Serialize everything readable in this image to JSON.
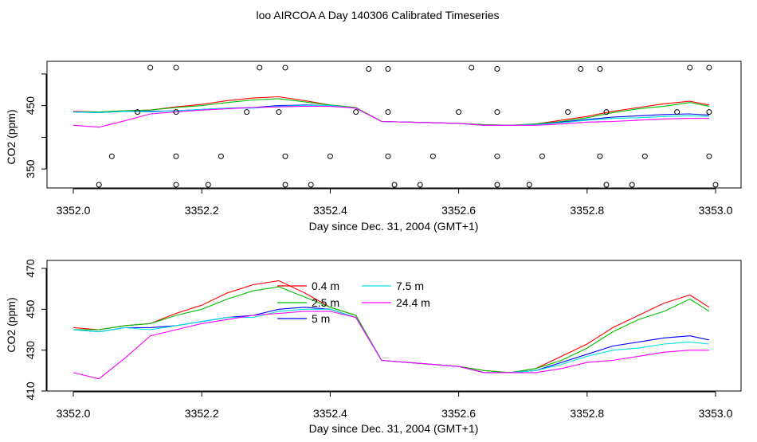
{
  "title": "loo AIRCOA A  Day 140306  Calibrated Timeseries",
  "chart_data": [
    {
      "type": "line",
      "panel": "top",
      "xlabel": "Day since Dec. 31, 2004 (GMT+1)",
      "ylabel": "CO2 (ppm)",
      "xlim": [
        3352.0,
        3353.0
      ],
      "ylim": [
        320,
        520
      ],
      "x_ticks": [
        "3352.0",
        "3352.2",
        "3352.4",
        "3352.6",
        "3352.8",
        "3353.0"
      ],
      "y_ticks": [
        {
          "v": 350,
          "label": "350"
        },
        {
          "v": 400,
          "label": ""
        },
        {
          "v": 450,
          "label": "450"
        },
        {
          "v": 500,
          "label": ""
        }
      ],
      "grid": false,
      "points": {
        "style": "open circles",
        "x": [
          3352.04,
          3352.06,
          3352.1,
          3352.12,
          3352.16,
          3352.16,
          3352.16,
          3352.16,
          3352.21,
          3352.23,
          3352.27,
          3352.29,
          3352.32,
          3352.33,
          3352.33,
          3352.33,
          3352.37,
          3352.4,
          3352.44,
          3352.46,
          3352.49,
          3352.49,
          3352.49,
          3352.5,
          3352.54,
          3352.56,
          3352.6,
          3352.62,
          3352.66,
          3352.66,
          3352.66,
          3352.66,
          3352.71,
          3352.73,
          3352.77,
          3352.79,
          3352.82,
          3352.82,
          3352.83,
          3352.83,
          3352.87,
          3352.89,
          3352.94,
          3352.96,
          3352.99,
          3352.99,
          3352.99,
          3353.0
        ],
        "y": [
          325,
          370,
          440,
          510,
          325,
          370,
          440,
          510,
          325,
          370,
          440,
          510,
          440,
          510,
          370,
          325,
          325,
          370,
          440,
          508,
          440,
          508,
          370,
          325,
          325,
          370,
          440,
          510,
          440,
          508,
          370,
          325,
          325,
          370,
          440,
          508,
          508,
          370,
          440,
          325,
          325,
          370,
          440,
          510,
          510,
          440,
          370,
          325
        ]
      },
      "x": [
        3352.0,
        3352.04,
        3352.08,
        3352.12,
        3352.16,
        3352.2,
        3352.24,
        3352.28,
        3352.32,
        3352.36,
        3352.4,
        3352.44,
        3352.48,
        3352.52,
        3352.56,
        3352.6,
        3352.64,
        3352.68,
        3352.72,
        3352.76,
        3352.8,
        3352.84,
        3352.88,
        3352.92,
        3352.96,
        3352.99
      ],
      "series": [
        {
          "name": "0.4 m",
          "color": "#ff0000",
          "values": [
            441,
            440,
            442,
            443,
            448,
            452,
            458,
            462,
            464,
            458,
            451,
            447,
            425,
            424,
            423,
            422,
            420,
            419,
            421,
            427,
            433,
            441,
            447,
            453,
            457,
            451
          ]
        },
        {
          "name": "2.5 m",
          "color": "#00c000",
          "values": [
            440,
            440,
            442,
            443,
            447,
            450,
            455,
            459,
            461,
            456,
            451,
            447,
            425,
            424,
            423,
            422,
            420,
            419,
            421,
            425,
            431,
            439,
            445,
            449,
            455,
            449
          ]
        },
        {
          "name": "5 m",
          "color": "#0000ff",
          "values": [
            440,
            439,
            441,
            441,
            442,
            444,
            446,
            447,
            450,
            451,
            450,
            446,
            425,
            424,
            423,
            422,
            419,
            419,
            420,
            424,
            428,
            432,
            434,
            436,
            437,
            435
          ]
        },
        {
          "name": "7.5 m",
          "color": "#00e0e0",
          "values": [
            440,
            439,
            441,
            440,
            442,
            444,
            446,
            446,
            449,
            450,
            450,
            446,
            425,
            424,
            423,
            422,
            419,
            419,
            420,
            423,
            427,
            430,
            431,
            433,
            434,
            433
          ]
        },
        {
          "name": "24.4 m",
          "color": "#ff00ff",
          "values": [
            419,
            416,
            426,
            437,
            440,
            443,
            445,
            447,
            448,
            449,
            449,
            446,
            425,
            424,
            423,
            422,
            419,
            419,
            419,
            421,
            424,
            425,
            427,
            429,
            430,
            430
          ]
        }
      ]
    },
    {
      "type": "line",
      "panel": "bottom",
      "xlabel": "Day since Dec. 31, 2004 (GMT+1)",
      "ylabel": "CO2 (ppm)",
      "xlim": [
        3352.0,
        3353.0
      ],
      "ylim": [
        410,
        470
      ],
      "x_ticks": [
        "3352.0",
        "3352.2",
        "3352.4",
        "3352.6",
        "3352.8",
        "3353.0"
      ],
      "y_ticks": [
        {
          "v": 410,
          "label": "410"
        },
        {
          "v": 430,
          "label": "430"
        },
        {
          "v": 450,
          "label": "450"
        },
        {
          "v": 470,
          "label": "470"
        }
      ],
      "grid": false,
      "legend": "inside-top-center",
      "x": [
        3352.0,
        3352.04,
        3352.08,
        3352.12,
        3352.16,
        3352.2,
        3352.24,
        3352.28,
        3352.32,
        3352.36,
        3352.4,
        3352.44,
        3352.48,
        3352.52,
        3352.56,
        3352.6,
        3352.64,
        3352.68,
        3352.72,
        3352.76,
        3352.8,
        3352.84,
        3352.88,
        3352.92,
        3352.96,
        3352.99
      ],
      "series": [
        {
          "name": "0.4 m",
          "color": "#ff0000",
          "values": [
            441,
            440,
            442,
            443,
            448,
            452,
            458,
            462,
            464,
            458,
            451,
            447,
            425,
            424,
            423,
            422,
            420,
            419,
            421,
            427,
            433,
            441,
            447,
            453,
            457,
            451
          ]
        },
        {
          "name": "2.5 m",
          "color": "#00c000",
          "values": [
            440,
            440,
            442,
            443,
            447,
            450,
            455,
            459,
            461,
            456,
            451,
            447,
            425,
            424,
            423,
            422,
            420,
            419,
            421,
            425,
            431,
            439,
            445,
            449,
            455,
            449
          ]
        },
        {
          "name": "5 m",
          "color": "#0000ff",
          "values": [
            440,
            439,
            441,
            441,
            442,
            444,
            446,
            447,
            450,
            451,
            450,
            446,
            425,
            424,
            423,
            422,
            419,
            419,
            420,
            424,
            428,
            432,
            434,
            436,
            437,
            435
          ]
        },
        {
          "name": "7.5 m",
          "color": "#00e0e0",
          "values": [
            440,
            439,
            441,
            440,
            442,
            444,
            446,
            446,
            449,
            450,
            450,
            446,
            425,
            424,
            423,
            422,
            419,
            419,
            420,
            423,
            427,
            430,
            431,
            433,
            434,
            433
          ]
        },
        {
          "name": "24.4 m",
          "color": "#ff00ff",
          "values": [
            419,
            416,
            426,
            437,
            440,
            443,
            445,
            447,
            448,
            449,
            449,
            446,
            425,
            424,
            423,
            422,
            419,
            419,
            419,
            421,
            424,
            425,
            427,
            429,
            430,
            430
          ]
        }
      ]
    }
  ]
}
